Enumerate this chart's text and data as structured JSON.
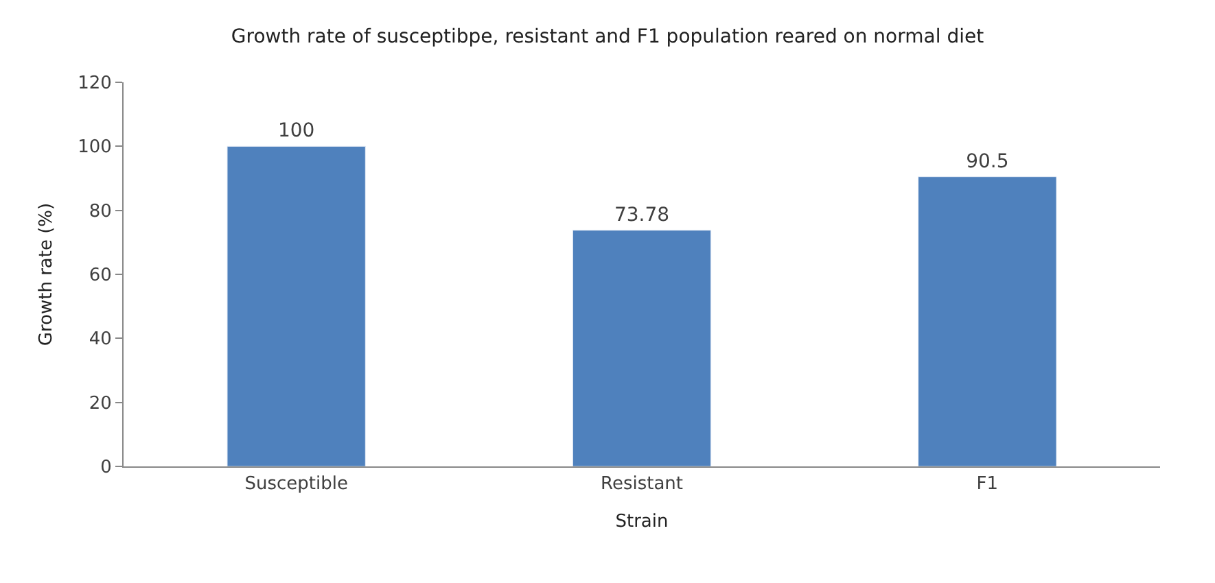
{
  "chart_data": {
    "type": "bar",
    "title": "Growth rate of susceptibpe, resistant and F1 population reared on normal diet",
    "xlabel": "Strain",
    "ylabel": "Growth rate (%)",
    "categories": [
      "Susceptible",
      "Resistant",
      "F1"
    ],
    "values": [
      100,
      73.78,
      90.5
    ],
    "value_labels": [
      "100",
      "73.78",
      "90.5"
    ],
    "color": "#4f81bd",
    "ylim": [
      0,
      120
    ],
    "yticks": [
      0,
      20,
      40,
      60,
      80,
      100,
      120
    ]
  }
}
